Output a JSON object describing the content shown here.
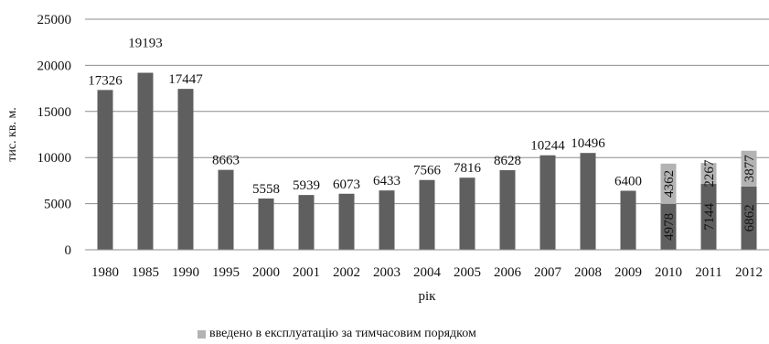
{
  "chart_data": {
    "type": "bar",
    "stacked": true,
    "categories": [
      "1980",
      "1985",
      "1990",
      "1995",
      "2000",
      "2001",
      "2002",
      "2003",
      "2004",
      "2005",
      "2006",
      "2007",
      "2008",
      "2009",
      "2010",
      "2011",
      "2012"
    ],
    "series": [
      {
        "color": "#5f5f5f",
        "values": [
          17326,
          19193,
          17447,
          8663,
          5558,
          5939,
          6073,
          6433,
          7566,
          7816,
          8628,
          10244,
          10496,
          6400,
          4978,
          7144,
          6862
        ],
        "data_labels": [
          "17326",
          "19193",
          "17447",
          "8663",
          "5558",
          "5939",
          "6073",
          "6433",
          "7566",
          "7816",
          "8628",
          "10244",
          "10496",
          "6400",
          "4978",
          "7144",
          "6862"
        ]
      },
      {
        "name": "введено в експлуатацію за тимчасовим порядком",
        "color": "#b3b3b3",
        "values": [
          null,
          null,
          null,
          null,
          null,
          null,
          null,
          null,
          null,
          null,
          null,
          null,
          null,
          null,
          4362,
          2267,
          3877
        ],
        "data_labels": [
          "",
          "",
          "",
          "",
          "",
          "",
          "",
          "",
          "",
          "",
          "",
          "",
          "",
          "",
          "4362",
          "2267",
          "3877"
        ]
      }
    ],
    "xlabel": "рік",
    "ylabel": "тис. кв. м.",
    "ylim": [
      0,
      25000
    ],
    "yticks": [
      0,
      5000,
      10000,
      15000,
      20000,
      25000
    ],
    "ytick_labels": [
      "0",
      "5000",
      "10000",
      "15000",
      "20000",
      "25000"
    ],
    "grid": true,
    "legend_position": "bottom"
  }
}
